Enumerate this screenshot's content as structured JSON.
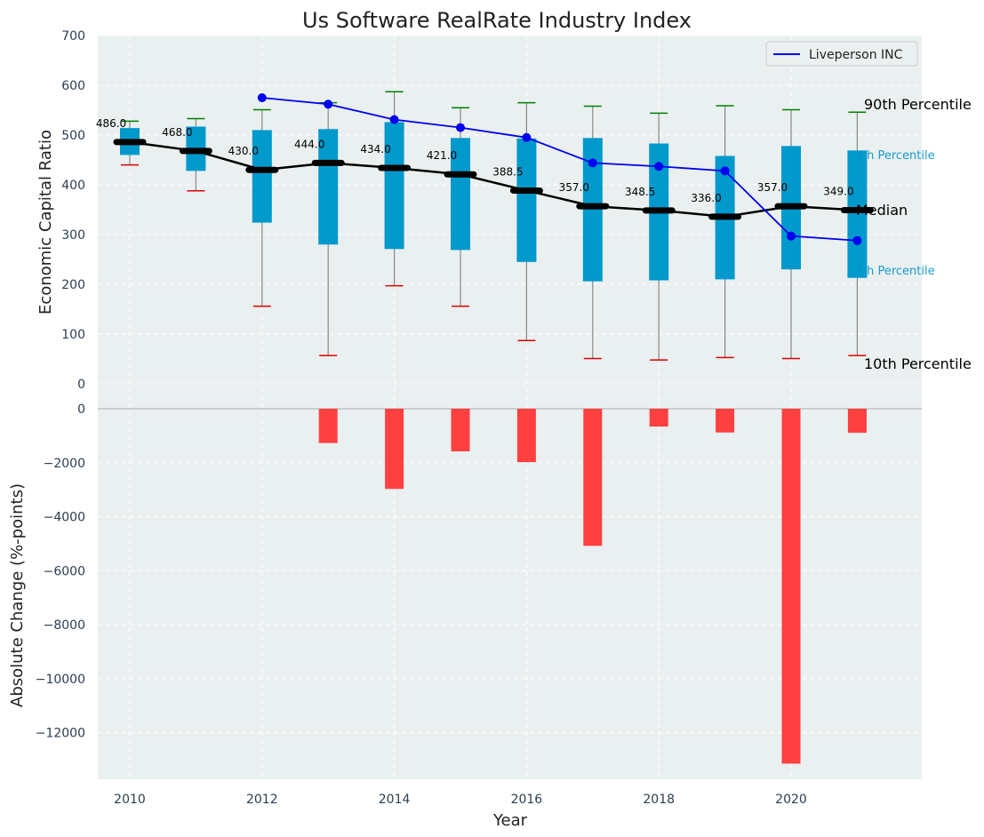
{
  "chart_data": [
    {
      "type": "box",
      "title": "Us Software RealRate Industry Index",
      "ylabel": "Economic Capital Ratio",
      "ylim": [
        0,
        700
      ],
      "yticks": [
        0,
        100,
        200,
        300,
        400,
        500,
        600,
        700
      ],
      "grid": true,
      "legend_position": "top-right",
      "years": [
        2010,
        2011,
        2012,
        2013,
        2014,
        2015,
        2016,
        2017,
        2018,
        2019,
        2020,
        2021
      ],
      "p10": [
        440,
        388,
        156,
        57,
        197,
        156,
        87,
        51,
        48,
        53,
        51,
        57
      ],
      "p25": [
        460,
        428,
        324,
        280,
        271,
        269,
        245,
        206,
        208,
        210,
        230,
        213
      ],
      "median": [
        486.0,
        468.0,
        430.0,
        444.0,
        434.0,
        421.0,
        388.5,
        357.0,
        348.5,
        336.0,
        357.0,
        349.0
      ],
      "median_labels": [
        "486.0",
        "468.0",
        "430.0",
        "444.0",
        "434.0",
        "421.0",
        "388.5",
        "357.0",
        "348.5",
        "336.0",
        "357.0",
        "349.0"
      ],
      "p75": [
        514,
        517,
        510,
        512,
        526,
        494,
        493,
        494,
        483,
        458,
        478,
        469
      ],
      "p90": [
        528,
        533,
        551,
        565,
        587,
        555,
        565,
        558,
        544,
        559,
        551,
        546
      ],
      "series": [
        {
          "name": "Liveperson INC",
          "color": "#0000ee",
          "x": [
            2012,
            2013,
            2014,
            2015,
            2016,
            2017,
            2018,
            2019,
            2020,
            2021
          ],
          "values": [
            575,
            562,
            531,
            515,
            495,
            444,
            437,
            428,
            297,
            288
          ]
        }
      ],
      "annotations": {
        "p90": "90th Percentile",
        "p75": "th Percentile",
        "median": "Median",
        "p25": "th Percentile",
        "p10": "10th Percentile"
      },
      "colors": {
        "box": "#0099cc",
        "median_line": "#000000",
        "whisker": "#888888",
        "p90_cap": "#008000",
        "p10_cap": "#dd0000",
        "plot_bg": "#eaeff0"
      }
    },
    {
      "type": "bar",
      "ylabel": "Absolute Change (%-points)",
      "xlabel": "Year",
      "ylim": [
        -13800,
        0
      ],
      "yticks": [
        0,
        -2000,
        -4000,
        -6000,
        -8000,
        -10000,
        -12000
      ],
      "xticks": [
        2010,
        2012,
        2014,
        2016,
        2018,
        2020
      ],
      "grid": true,
      "categories": [
        2013,
        2014,
        2015,
        2016,
        2017,
        2018,
        2019,
        2020,
        2021
      ],
      "values": [
        -1270,
        -2970,
        -1580,
        -1980,
        -5080,
        -660,
        -880,
        -13150,
        -890
      ],
      "color": "#ff4040"
    }
  ]
}
